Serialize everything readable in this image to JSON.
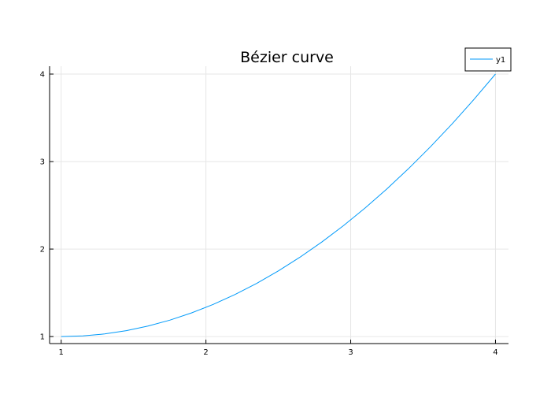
{
  "chart_data": {
    "type": "line",
    "title": "Bézier curve",
    "xlabel": "",
    "ylabel": "",
    "xlim": [
      0.92,
      4.09
    ],
    "ylim": [
      0.92,
      4.09
    ],
    "x_ticks": [
      1,
      2,
      3,
      4
    ],
    "y_ticks": [
      1,
      2,
      3,
      4
    ],
    "grid": true,
    "legend_position": "top-right",
    "series": [
      {
        "name": "y1",
        "color": "#009AFA",
        "x": [
          1.0,
          1.15,
          1.3,
          1.45,
          1.6,
          1.75,
          1.9,
          2.05,
          2.2,
          2.35,
          2.5,
          2.65,
          2.8,
          2.95,
          3.1,
          3.25,
          3.4,
          3.55,
          3.7,
          3.85,
          4.0
        ],
        "y": [
          1.0,
          1.0075,
          1.03,
          1.0675,
          1.12,
          1.1875,
          1.27,
          1.3675,
          1.48,
          1.6075,
          1.75,
          1.9075,
          2.08,
          2.2675,
          2.47,
          2.6875,
          2.92,
          3.1675,
          3.43,
          3.7075,
          4.0
        ]
      }
    ]
  }
}
